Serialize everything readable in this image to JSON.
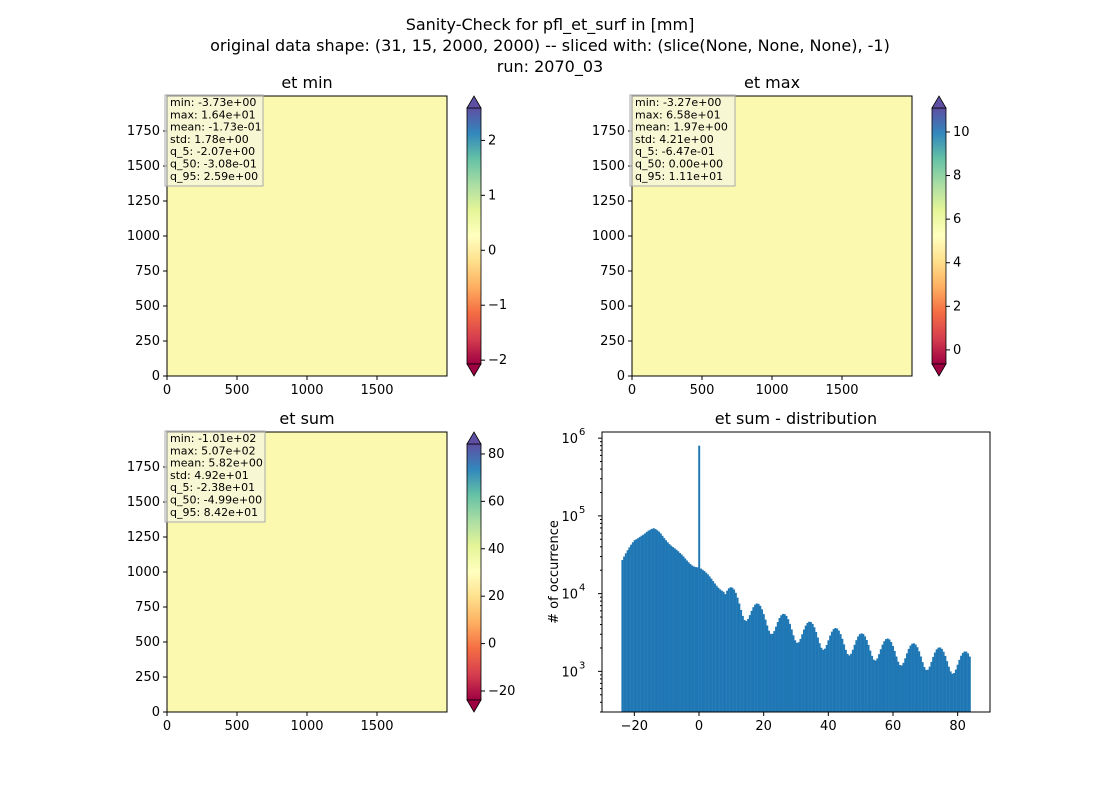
{
  "figure": {
    "title_lines": [
      "Sanity-Check for pfl_et_surf in [mm]",
      "original data shape: (31, 15, 2000, 2000) -- sliced with: (slice(None, None, None), -1)",
      "run: 2070_03"
    ]
  },
  "chart_data": [
    {
      "type": "heatmap",
      "title": "et min",
      "xlim": [
        0,
        2000
      ],
      "ylim": [
        0,
        2000
      ],
      "x_ticks": [
        0,
        500,
        1000,
        1500
      ],
      "y_ticks": [
        0,
        250,
        500,
        750,
        1000,
        1250,
        1500,
        1750
      ],
      "colormap": "Spectral",
      "colorbar_range": [
        -2.07,
        2.59
      ],
      "colorbar_ticks": [
        "−2",
        "−1",
        "0",
        "1",
        "2"
      ],
      "colorbar_tick_values": [
        -2,
        -1,
        0,
        1,
        2
      ],
      "stats": [
        "min: -3.73e+00",
        "max: 1.64e+01",
        "mean: -1.73e-01",
        "std: 1.78e+00",
        "q_5: -2.07e+00",
        "q_50: -3.08e-01",
        "q_95: 2.59e+00"
      ]
    },
    {
      "type": "heatmap",
      "title": "et max",
      "xlim": [
        0,
        2000
      ],
      "ylim": [
        0,
        2000
      ],
      "x_ticks": [
        0,
        500,
        1000,
        1500
      ],
      "y_ticks": [
        0,
        250,
        500,
        750,
        1000,
        1250,
        1500,
        1750
      ],
      "colormap": "Spectral",
      "colorbar_range": [
        -0.647,
        11.1
      ],
      "colorbar_ticks": [
        "0",
        "2",
        "4",
        "6",
        "8",
        "10"
      ],
      "colorbar_tick_values": [
        0,
        2,
        4,
        6,
        8,
        10
      ],
      "stats": [
        "min: -3.27e+00",
        "max: 6.58e+01",
        "mean: 1.97e+00",
        "std: 4.21e+00",
        "q_5: -6.47e-01",
        "q_50: 0.00e+00",
        "q_95: 1.11e+01"
      ]
    },
    {
      "type": "heatmap",
      "title": "et sum",
      "xlim": [
        0,
        2000
      ],
      "ylim": [
        0,
        2000
      ],
      "x_ticks": [
        0,
        500,
        1000,
        1500
      ],
      "y_ticks": [
        0,
        250,
        500,
        750,
        1000,
        1250,
        1500,
        1750
      ],
      "colormap": "Spectral",
      "colorbar_range": [
        -23.8,
        84.2
      ],
      "colorbar_ticks": [
        "−20",
        "0",
        "20",
        "40",
        "60",
        "80"
      ],
      "colorbar_tick_values": [
        -20,
        0,
        20,
        40,
        60,
        80
      ],
      "stats": [
        "min: -1.01e+02",
        "max: 5.07e+02",
        "mean: 5.82e+00",
        "std: 4.92e+01",
        "q_5: -2.38e+01",
        "q_50: -4.99e+00",
        "q_95: 8.42e+01"
      ]
    },
    {
      "type": "bar",
      "title": "et sum - distribution",
      "ylabel": "# of occurrence",
      "y_scale": "log",
      "xlim": [
        -30,
        90
      ],
      "ylim": [
        300,
        1200000
      ],
      "x_ticks": [
        -20,
        0,
        20,
        40,
        60,
        80
      ],
      "x_tick_labels": [
        "−20",
        "0",
        "20",
        "40",
        "60",
        "80"
      ],
      "bar_color": "#1f77b4",
      "histogram_range": [
        -24,
        84
      ],
      "bin_count": 200,
      "spike": {
        "x": 0,
        "count": 800000
      },
      "envelope": [
        [
          -24,
          26000
        ],
        [
          -22,
          35000
        ],
        [
          -20,
          48000
        ],
        [
          -18,
          58000
        ],
        [
          -16,
          64000
        ],
        [
          -14,
          66000
        ],
        [
          -12,
          60000
        ],
        [
          -10,
          50000
        ],
        [
          -8,
          40000
        ],
        [
          -6,
          32000
        ],
        [
          -4,
          27000
        ],
        [
          -2,
          24000
        ],
        [
          0,
          22000
        ],
        [
          2,
          18000
        ],
        [
          4,
          15000
        ],
        [
          6,
          12500
        ],
        [
          8,
          10500
        ],
        [
          10,
          9000
        ],
        [
          14,
          7000
        ],
        [
          20,
          5000
        ],
        [
          30,
          3600
        ],
        [
          40,
          2800
        ],
        [
          50,
          2300
        ],
        [
          60,
          1900
        ],
        [
          70,
          1600
        ],
        [
          80,
          1400
        ],
        [
          84,
          1300
        ]
      ]
    }
  ]
}
